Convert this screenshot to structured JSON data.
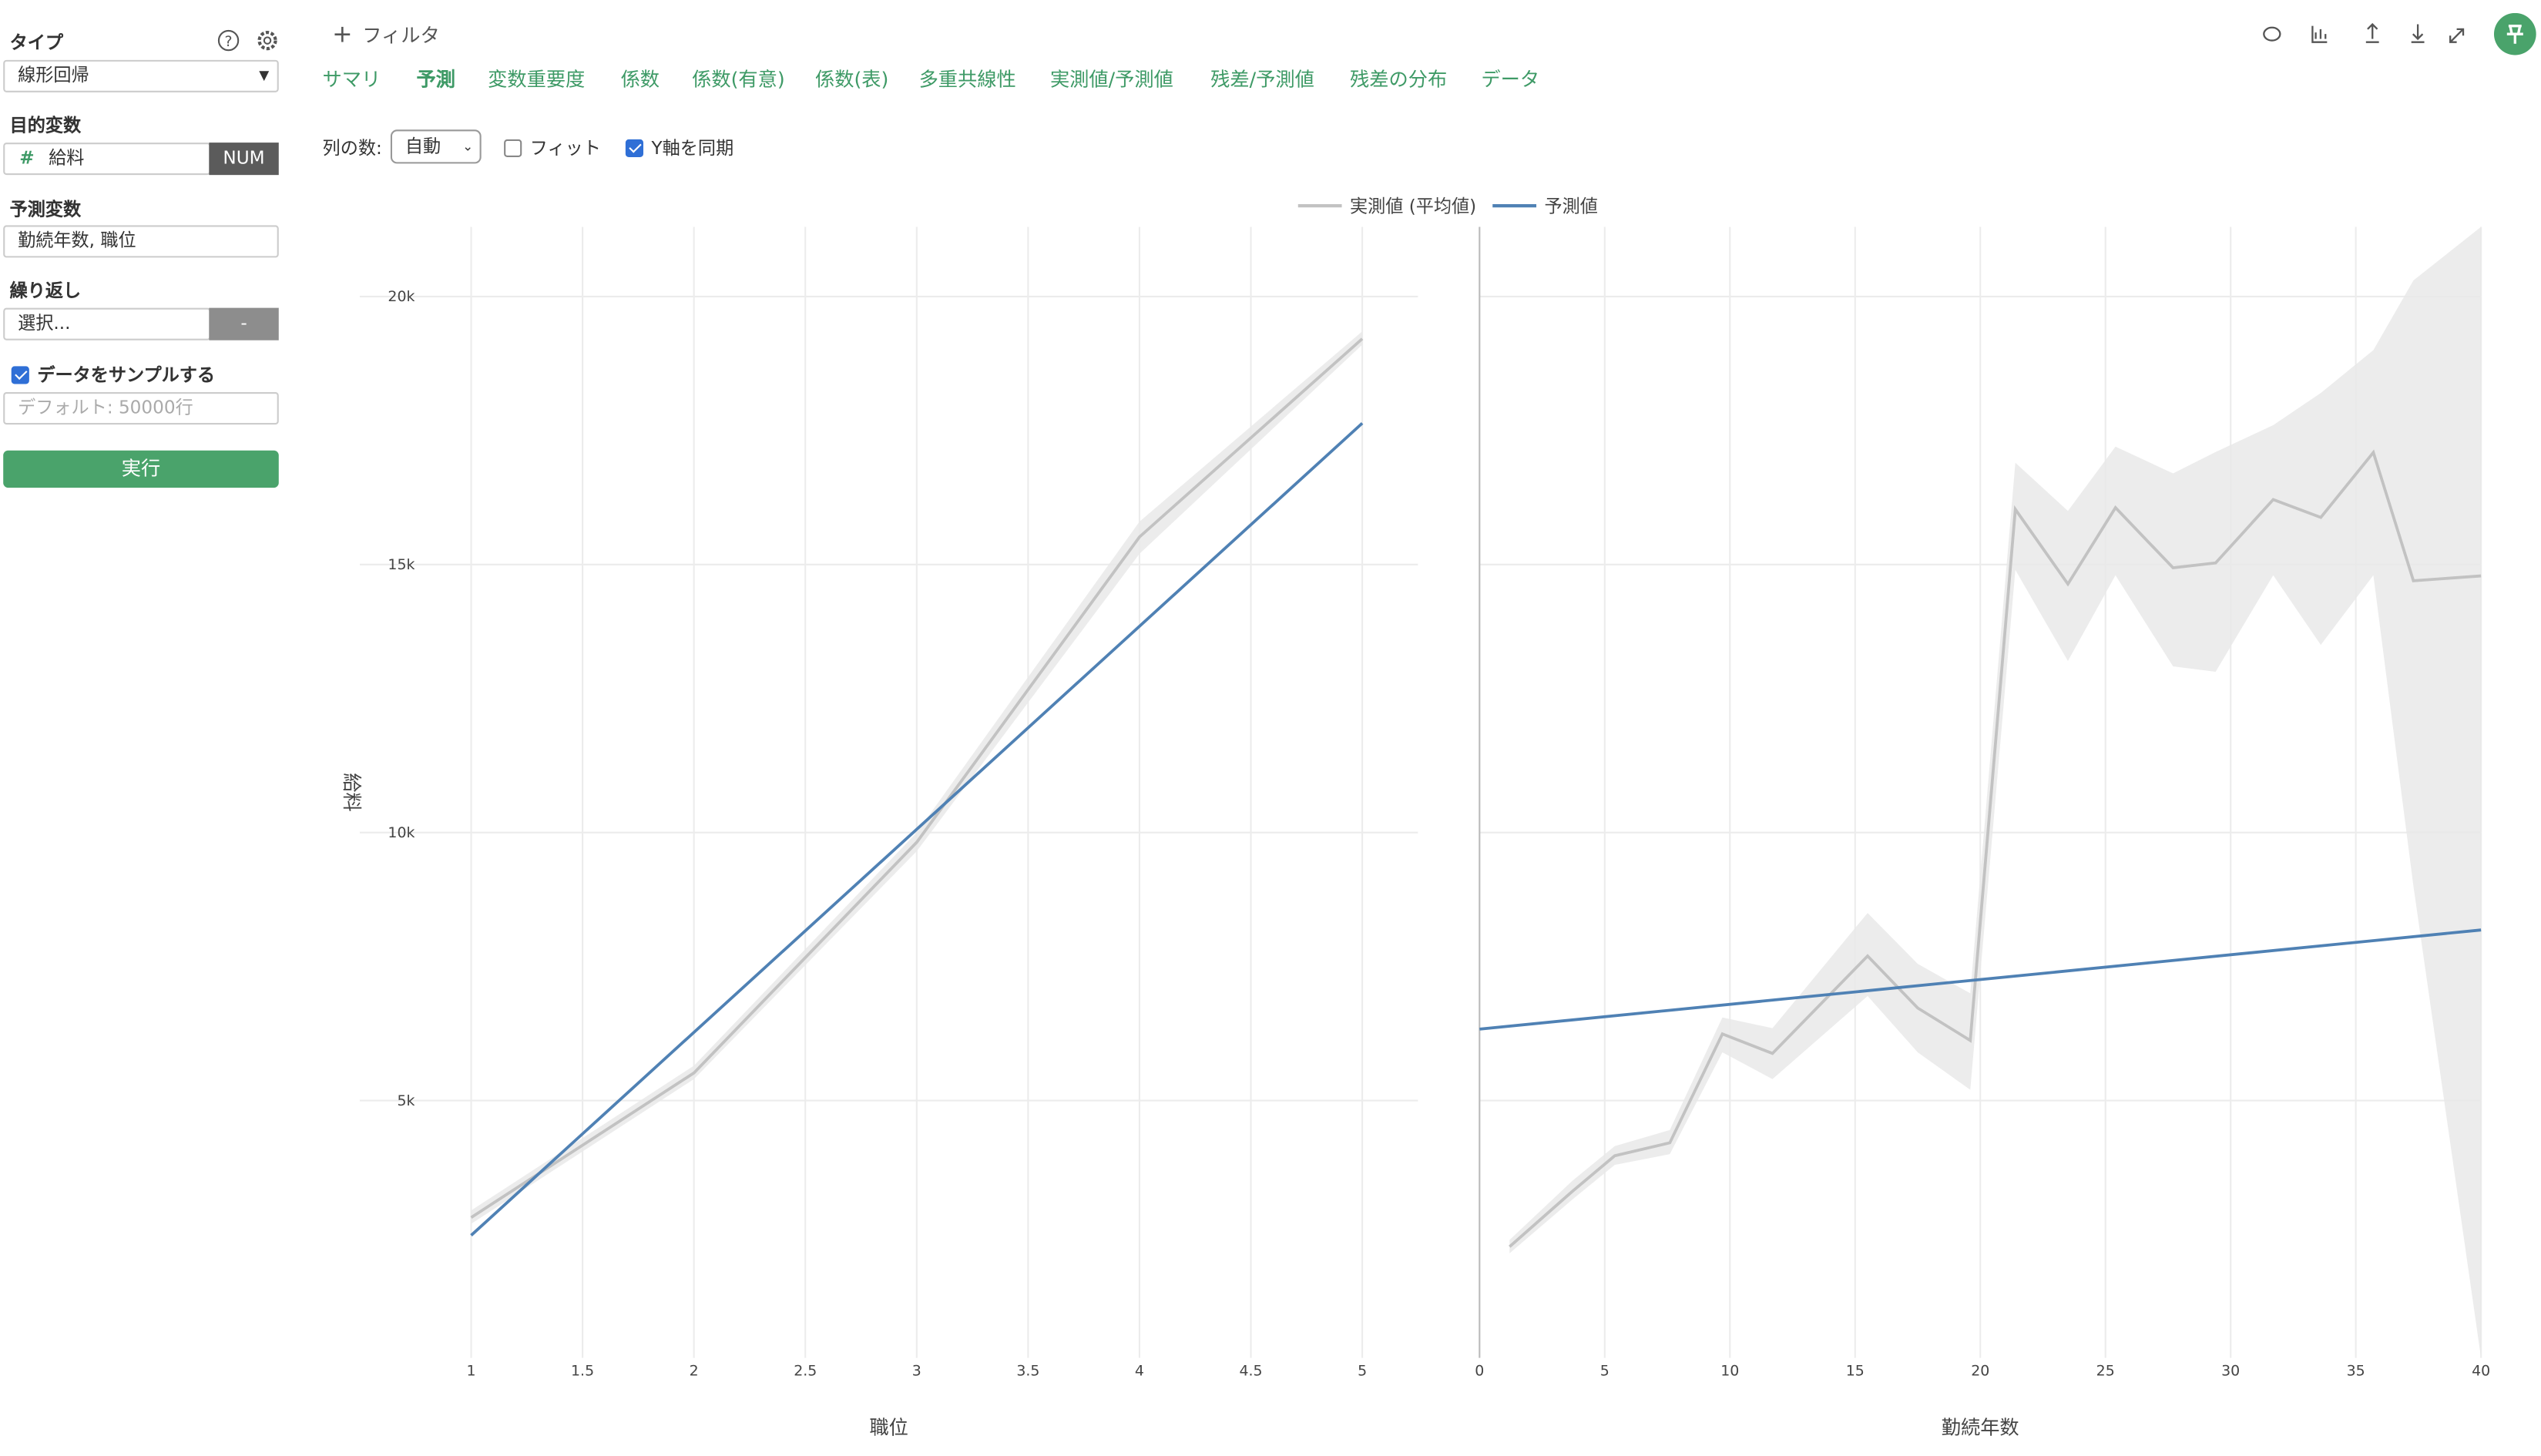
{
  "sidebar": {
    "type_label": "タイプ",
    "type_value": "線形回帰",
    "target_label": "目的変数",
    "target_value": "給料",
    "target_kind": "NUM",
    "predictors_label": "予測変数",
    "predictors_value": "勤続年数, 職位",
    "repeat_label": "繰り返し",
    "repeat_value": "選択...",
    "repeat_button": "-",
    "sample_label": "データをサンプルする",
    "sample_checked": true,
    "sample_placeholder": "デフォルト: 50000行",
    "run_button": "実行"
  },
  "filter": "フィルタ",
  "tabs": [
    "サマリ",
    "予測",
    "変数重要度",
    "係数",
    "係数(有意)",
    "係数(表)",
    "多重共線性",
    "実測値/予測値",
    "残差/予測値",
    "残差の分布",
    "データ"
  ],
  "active_tab": 1,
  "options": {
    "columns_label": "列の数:",
    "columns_value": "自動",
    "fit_label": "フィット",
    "fit_checked": false,
    "sync_label": "Y軸を同期",
    "sync_checked": true
  },
  "chart_data": [
    {
      "type": "line",
      "x_label": "職位",
      "y_label": "給料",
      "xlim": [
        0.5,
        5.25
      ],
      "ylim": [
        200,
        21300
      ],
      "xticks": [
        1,
        1.5,
        2,
        2.5,
        3,
        3.5,
        4,
        4.5,
        5
      ],
      "yticks": [
        {
          "value": 5000,
          "label": "5k"
        },
        {
          "value": 10000,
          "label": "10k"
        },
        {
          "value": 15000,
          "label": "15k"
        },
        {
          "value": 20000,
          "label": "20k"
        }
      ],
      "grid": true,
      "series": [
        {
          "name": "実測値 (平均値)",
          "color": "#c2c2c2",
          "x": [
            1,
            2,
            3,
            4,
            5
          ],
          "values": [
            2818,
            5515,
            9818,
            15515,
            19212
          ],
          "lower": [
            2700,
            5400,
            9650,
            15200,
            19100
          ],
          "upper": [
            2950,
            5650,
            10000,
            15800,
            19350
          ]
        },
        {
          "name": "予測値",
          "color": "#4f81b4",
          "x": [
            1,
            5
          ],
          "values": [
            2485,
            17636
          ]
        }
      ]
    },
    {
      "type": "line",
      "x_label": "勤続年数",
      "xlim": [
        0,
        40
      ],
      "ylim": [
        200,
        21300
      ],
      "xticks": [
        0,
        5,
        10,
        15,
        20,
        25,
        30,
        35,
        40
      ],
      "yticks": [
        5000,
        10000,
        15000,
        20000
      ],
      "grid": true,
      "series": [
        {
          "color": "#c2c2c2",
          "x": [
            1.2,
            3.7,
            5.4,
            7.6,
            9.7,
            11.7,
            15.5,
            17.5,
            19.6,
            21.4,
            23.5,
            25.4,
            27.7,
            29.4,
            31.7,
            33.6,
            35.7,
            37.3,
            40
          ],
          "values": [
            2273,
            3303,
            3970,
            4212,
            6242,
            5879,
            7697,
            6727,
            6121,
            16030,
            14636,
            16061,
            14939,
            15030,
            16212,
            15879,
            17091,
            14697,
            14788
          ],
          "lower": [
            2150,
            3150,
            3800,
            4000,
            5900,
            5400,
            6950,
            5900,
            5200,
            14900,
            13200,
            14800,
            13100,
            13000,
            14800,
            13500,
            14800,
            9000,
            200
          ],
          "upper": [
            2400,
            3500,
            4150,
            4450,
            6550,
            6350,
            8500,
            7550,
            7000,
            16900,
            16000,
            17200,
            16700,
            17100,
            17600,
            18200,
            19000,
            20300,
            21300
          ]
        },
        {
          "color": "#4f81b4",
          "x": [
            0,
            40
          ],
          "values": [
            6333,
            8182
          ]
        }
      ]
    }
  ]
}
